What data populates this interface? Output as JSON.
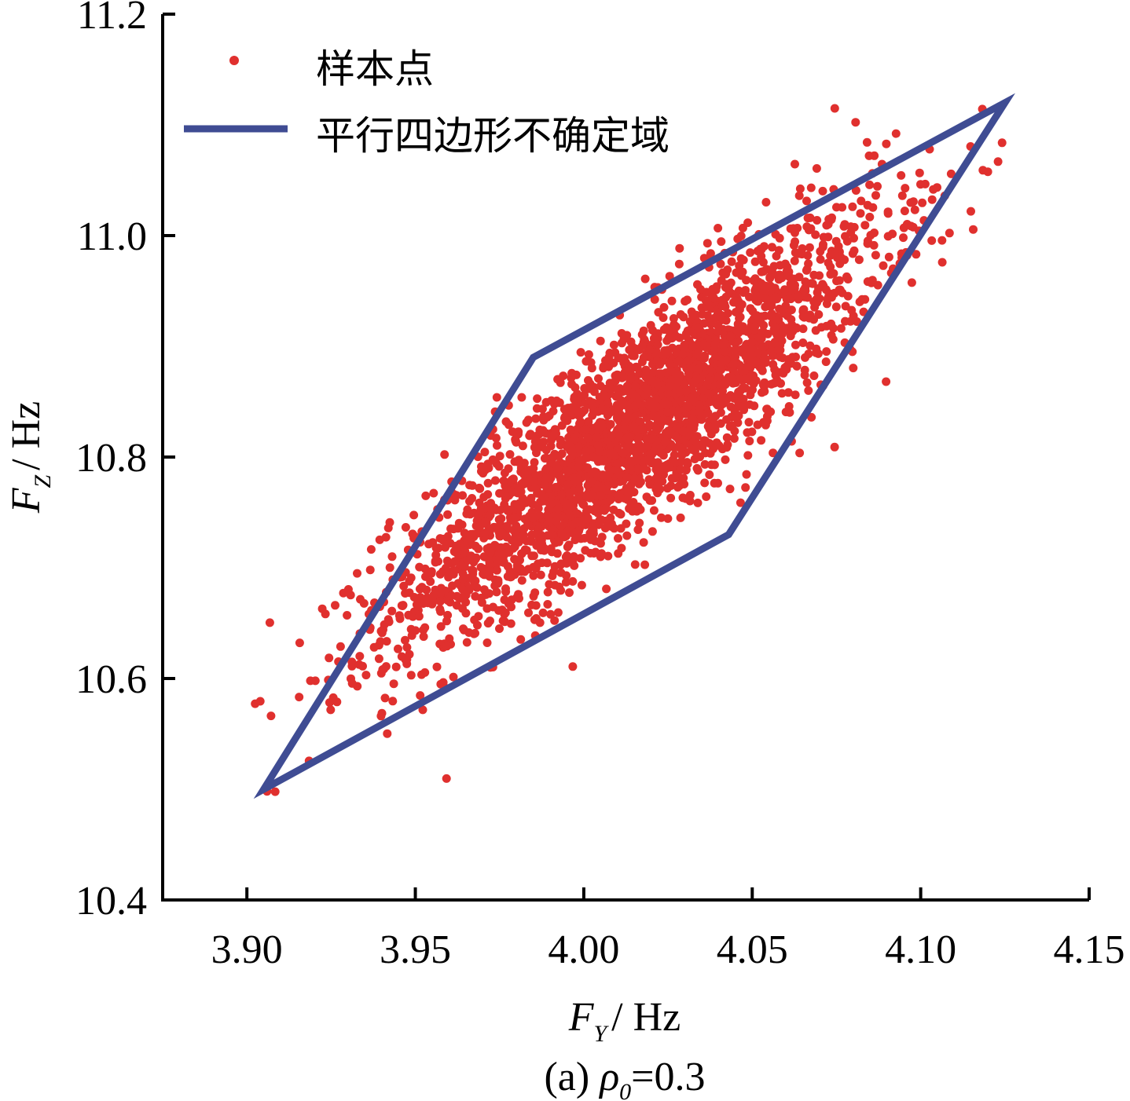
{
  "chart_data": {
    "type": "scatter",
    "x_axis": {
      "range": [
        3.875,
        4.15
      ],
      "ticks": [
        "3.90",
        "3.95",
        "4.00",
        "4.05",
        "4.10",
        "4.15"
      ],
      "label_symbol": "F",
      "label_sub": "Y",
      "label_unit": "/ Hz"
    },
    "y_axis": {
      "range": [
        10.4,
        11.2
      ],
      "ticks": [
        "10.4",
        "10.6",
        "10.8",
        "11.0",
        "11.2"
      ],
      "label_symbol": "F",
      "label_sub": "Z",
      "label_unit": "/ Hz"
    },
    "legend": {
      "position": "top-left",
      "entries": [
        "样本点",
        "平行四边形不确定域"
      ]
    },
    "series": [
      {
        "name": "样本点",
        "kind": "scatter",
        "color": "#e0302e",
        "distribution": {
          "mean": [
            4.015,
            10.825
          ],
          "std": [
            0.036,
            0.094
          ],
          "correlation": 0.88,
          "count": 3000
        }
      },
      {
        "name": "平行四边形不确定域",
        "kind": "polygon",
        "color": "#3f4c93",
        "vertices": [
          [
            3.905,
            10.5
          ],
          [
            3.985,
            10.89
          ],
          [
            4.125,
            11.12
          ],
          [
            4.043,
            10.73
          ]
        ]
      }
    ],
    "caption": {
      "prefix": "(a) ",
      "symbol": "ρ",
      "sub": "0",
      "suffix": "=0.3"
    },
    "grid": false
  }
}
